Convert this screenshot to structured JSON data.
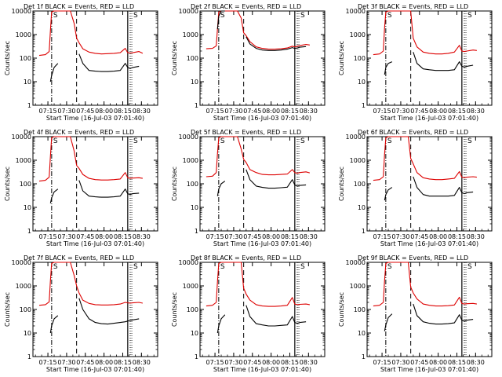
{
  "chart_data": {
    "type": "line",
    "y_scale": "log",
    "ylim": [
      1,
      10000
    ],
    "xlim_minutes": [
      0,
      100
    ],
    "x_ticks": [
      {
        "min": 12,
        "label": "07:15"
      },
      {
        "min": 27,
        "label": "07:30"
      },
      {
        "min": 42,
        "label": "07:45"
      },
      {
        "min": 57,
        "label": "08:00"
      },
      {
        "min": 72,
        "label": "08:15"
      },
      {
        "min": 87,
        "label": "08:30"
      }
    ],
    "y_ticks": [
      {
        "v": 1,
        "label": "1"
      },
      {
        "v": 10,
        "label": "10"
      },
      {
        "v": 100,
        "label": "100"
      },
      {
        "v": 1000,
        "label": "1000"
      },
      {
        "v": 10000,
        "label": "10000"
      }
    ],
    "ylabel": "Counts/sec",
    "xlabel": "Start Time (16-Jul-03 07:01:40)",
    "series_legend": {
      "black": "Events",
      "red": "LLD"
    },
    "vertical_markers": {
      "dash_dot": 15,
      "dashed": 35,
      "solid": 76
    },
    "right_region_start": 78,
    "time_minutes": [
      5,
      10,
      13,
      14,
      15,
      17,
      20,
      25,
      30,
      33,
      35,
      37,
      40,
      45,
      50,
      55,
      60,
      65,
      70,
      74,
      76,
      78,
      80,
      85,
      88
    ],
    "panels": [
      {
        "title": "Det 1f BLACK = Events, RED = LLD",
        "glyph": "S",
        "red": [
          130,
          140,
          190,
          1500,
          9000,
          20000,
          20000,
          20000,
          20000,
          3000,
          700,
          450,
          250,
          180,
          160,
          150,
          155,
          160,
          170,
          260,
          170,
          165,
          170,
          190,
          160
        ],
        "black": [
          null,
          null,
          null,
          10,
          18,
          40,
          60,
          null,
          null,
          null,
          null,
          150,
          60,
          30,
          28,
          27,
          27,
          28,
          30,
          60,
          40,
          36,
          40,
          45,
          null
        ]
      },
      {
        "title": "Det 2f BLACK = Events, RED = LLD",
        "glyph": "S",
        "red": [
          250,
          260,
          330,
          1800,
          9000,
          20000,
          20000,
          20000,
          20000,
          5000,
          1200,
          900,
          500,
          300,
          260,
          240,
          240,
          250,
          270,
          320,
          300,
          320,
          340,
          380,
          360
        ],
        "black": [
          null,
          null,
          null,
          1700,
          6000,
          20000,
          20000,
          null,
          null,
          null,
          null,
          800,
          400,
          260,
          220,
          210,
          210,
          220,
          240,
          280,
          260,
          270,
          290,
          310,
          null
        ]
      },
      {
        "title": "Det 3f BLACK = Events, RED = LLD",
        "glyph": "S",
        "red": [
          140,
          150,
          200,
          2000,
          9000,
          20000,
          20000,
          20000,
          20000,
          20000,
          20000,
          700,
          300,
          180,
          160,
          150,
          150,
          160,
          180,
          350,
          200,
          190,
          200,
          220,
          210
        ],
        "black": [
          null,
          null,
          null,
          20,
          40,
          60,
          70,
          null,
          null,
          null,
          null,
          180,
          60,
          35,
          32,
          30,
          30,
          30,
          32,
          70,
          45,
          42,
          45,
          50,
          null
        ]
      },
      {
        "title": "Det 4f BLACK = Events, RED = LLD",
        "glyph": "S",
        "red": [
          130,
          140,
          190,
          1500,
          9000,
          20000,
          20000,
          20000,
          20000,
          2500,
          600,
          450,
          250,
          170,
          150,
          145,
          145,
          150,
          160,
          300,
          180,
          170,
          175,
          180,
          170
        ],
        "black": [
          null,
          null,
          null,
          15,
          25,
          45,
          60,
          null,
          null,
          null,
          null,
          140,
          50,
          30,
          28,
          27,
          27,
          28,
          30,
          60,
          38,
          35,
          38,
          40,
          null
        ]
      },
      {
        "title": "Det 5f BLACK = Events, RED = LLD",
        "glyph": "S",
        "red": [
          200,
          210,
          300,
          2000,
          9000,
          20000,
          20000,
          20000,
          20000,
          3000,
          1100,
          800,
          400,
          300,
          250,
          240,
          240,
          250,
          260,
          400,
          300,
          280,
          300,
          320,
          290
        ],
        "black": [
          null,
          null,
          null,
          30,
          60,
          100,
          130,
          null,
          null,
          null,
          null,
          400,
          150,
          80,
          70,
          65,
          65,
          68,
          72,
          150,
          90,
          80,
          85,
          90,
          null
        ]
      },
      {
        "title": "Det 6f BLACK = Events, RED = LLD",
        "glyph": "S",
        "red": [
          140,
          150,
          200,
          1800,
          9000,
          20000,
          20000,
          20000,
          20000,
          20000,
          1200,
          700,
          300,
          180,
          160,
          150,
          150,
          160,
          170,
          330,
          190,
          180,
          190,
          200,
          190
        ],
        "black": [
          null,
          null,
          null,
          20,
          35,
          55,
          70,
          null,
          null,
          null,
          null,
          200,
          70,
          35,
          30,
          30,
          30,
          30,
          32,
          70,
          42,
          38,
          42,
          45,
          null
        ]
      },
      {
        "title": "Det 7f BLACK = Events, RED = LLD",
        "glyph": "S",
        "red": [
          150,
          160,
          210,
          1700,
          9000,
          20000,
          20000,
          20000,
          20000,
          2800,
          1000,
          500,
          250,
          180,
          160,
          155,
          155,
          160,
          170,
          200,
          190,
          185,
          190,
          200,
          185
        ],
        "black": [
          null,
          null,
          null,
          10,
          20,
          40,
          55,
          null,
          null,
          null,
          null,
          300,
          100,
          40,
          28,
          25,
          24,
          26,
          28,
          30,
          32,
          34,
          36,
          40,
          null
        ]
      },
      {
        "title": "Det 8f BLACK = Events, RED = LLD",
        "glyph": "S",
        "red": [
          140,
          150,
          200,
          1600,
          9000,
          20000,
          20000,
          20000,
          20000,
          20000,
          800,
          450,
          250,
          160,
          140,
          135,
          135,
          140,
          150,
          320,
          170,
          160,
          165,
          170,
          160
        ],
        "black": [
          null,
          null,
          null,
          10,
          20,
          40,
          60,
          null,
          null,
          null,
          null,
          150,
          50,
          25,
          22,
          20,
          20,
          21,
          22,
          50,
          28,
          26,
          28,
          30,
          null
        ]
      },
      {
        "title": "Det 9f BLACK = Events, RED = LLD",
        "glyph": "S",
        "red": [
          140,
          150,
          200,
          1700,
          9000,
          20000,
          20000,
          20000,
          20000,
          20000,
          900,
          500,
          280,
          170,
          150,
          140,
          140,
          145,
          155,
          330,
          180,
          170,
          175,
          180,
          170
        ],
        "black": [
          null,
          null,
          null,
          12,
          22,
          45,
          65,
          null,
          null,
          null,
          null,
          170,
          55,
          30,
          26,
          24,
          24,
          25,
          27,
          60,
          35,
          32,
          35,
          38,
          null
        ]
      }
    ]
  }
}
